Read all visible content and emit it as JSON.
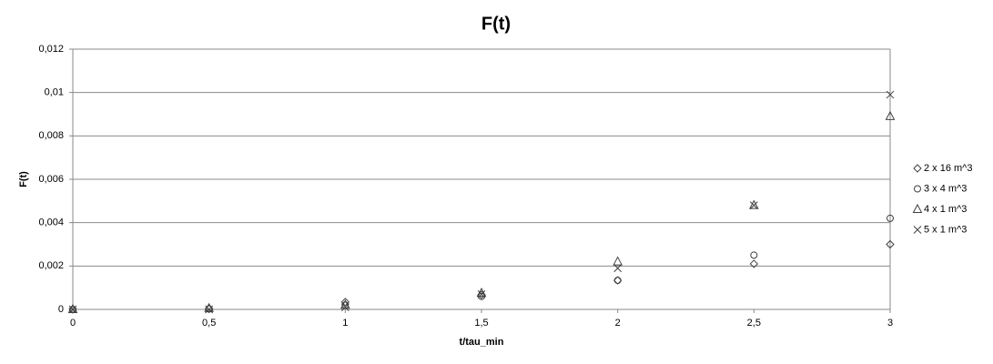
{
  "chart_data": {
    "type": "scatter",
    "title": "F(t)",
    "x_label": "t/tau_min",
    "y_label": "F(t)",
    "x": [
      0,
      0.5,
      1,
      1.5,
      2,
      2.5,
      3
    ],
    "series": [
      {
        "name": "2 x 16 m^3",
        "marker": "diamond",
        "color": "#404040",
        "values": [
          0,
          3e-05,
          0.00034,
          0.00067,
          0.00134,
          0.0021,
          0.003
        ]
      },
      {
        "name": "3 x 4 m^3",
        "marker": "circle",
        "color": "#404040",
        "values": [
          0,
          2e-05,
          0.0002,
          0.0006,
          0.00134,
          0.0025,
          0.0042
        ]
      },
      {
        "name": "4 x 1 m^3",
        "marker": "triangle",
        "color": "#404040",
        "values": [
          0,
          5e-05,
          0.0002,
          0.00075,
          0.0022,
          0.0048,
          0.0089
        ]
      },
      {
        "name": "5 x 1 m^3",
        "marker": "x",
        "color": "#404040",
        "values": [
          0,
          0,
          0.0001,
          0.0007,
          0.0019,
          0.0048,
          0.0099
        ]
      }
    ],
    "xlim": [
      0,
      3
    ],
    "xticks": [
      0,
      {
        "value": 0.5,
        "label": "0,5"
      },
      1,
      {
        "value": 1.5,
        "label": "1,5"
      },
      2,
      {
        "value": 2.5,
        "label": "2,5"
      },
      3
    ],
    "ylim": [
      0,
      0.012
    ],
    "yticks": [
      0,
      {
        "value": 0.002,
        "label": "0,002"
      },
      {
        "value": 0.004,
        "label": "0,004"
      },
      {
        "value": 0.006,
        "label": "0,006"
      },
      {
        "value": 0.008,
        "label": "0,008"
      },
      {
        "value": 0.01,
        "label": "0,01"
      },
      {
        "value": 0.012,
        "label": "0,012"
      }
    ],
    "grid": true,
    "legend": "right"
  }
}
